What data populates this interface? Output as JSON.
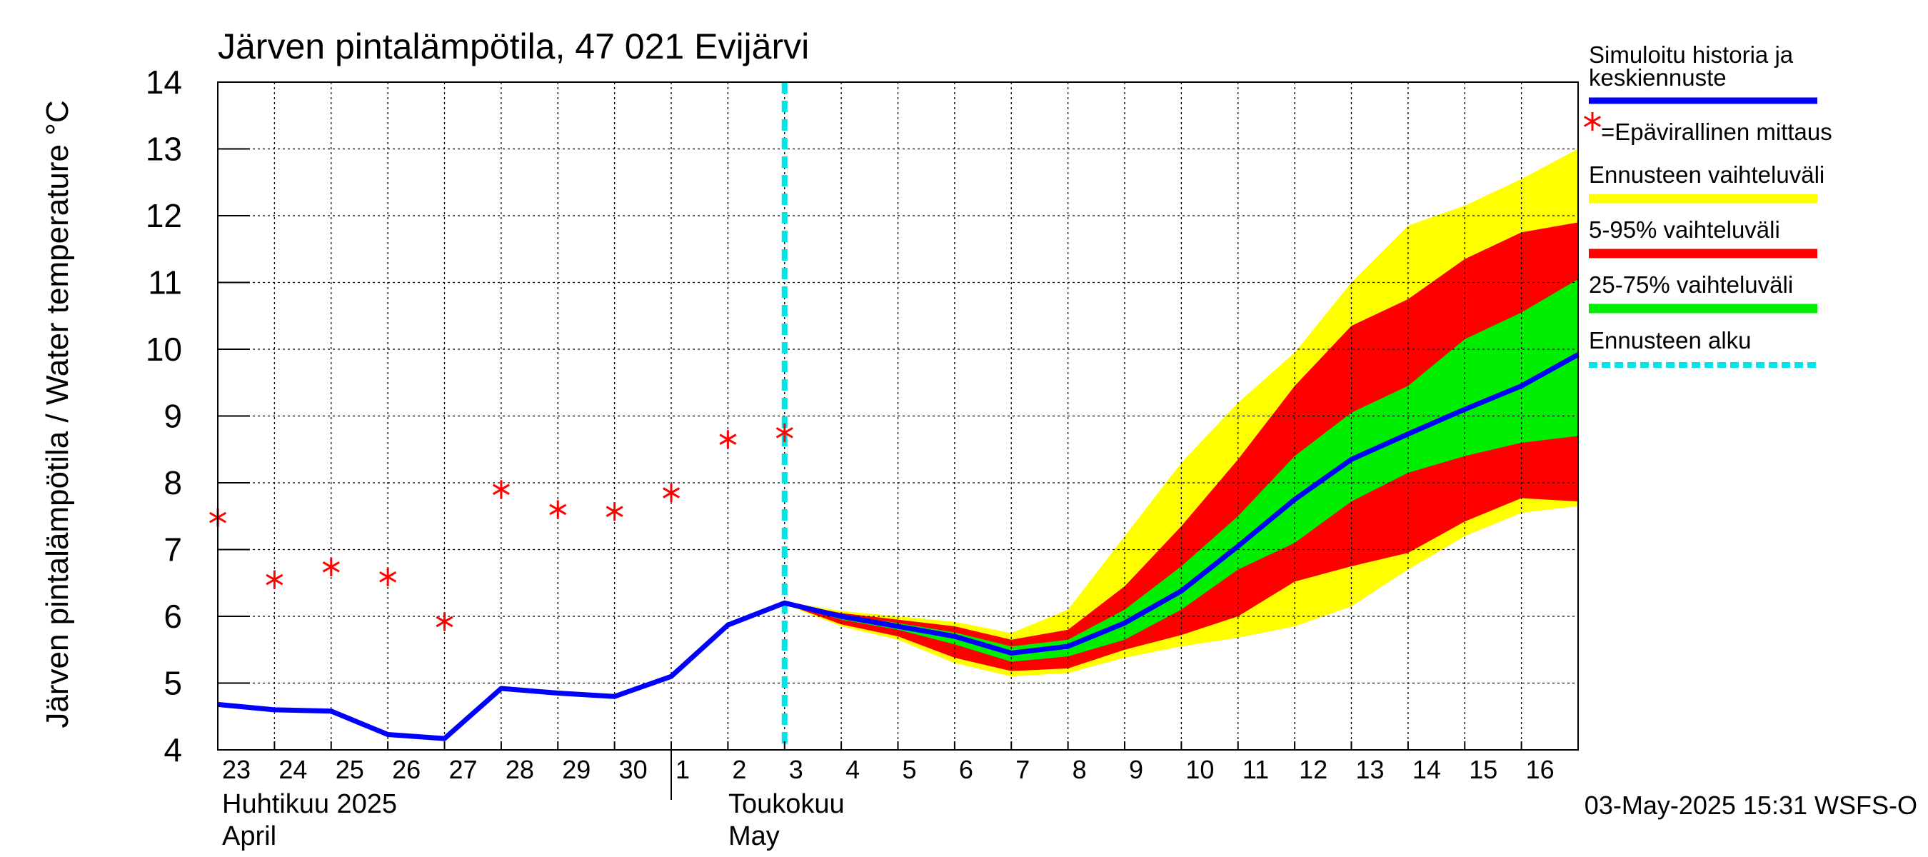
{
  "chart_data": {
    "type": "line",
    "title": "Järven pintalämpötila, 47 021 Evijärvi",
    "ylabel": "Järven pintalämpötila / Water temperature °C",
    "ylim": [
      4,
      14
    ],
    "yticks": [
      4,
      5,
      6,
      7,
      8,
      9,
      10,
      11,
      12,
      13,
      14
    ],
    "x_range": [
      "2025-04-23",
      "2025-05-17"
    ],
    "x_tick_labels": [
      "23",
      "24",
      "25",
      "26",
      "27",
      "28",
      "29",
      "30",
      "1",
      "2",
      "3",
      "4",
      "5",
      "6",
      "7",
      "8",
      "9",
      "10",
      "11",
      "12",
      "13",
      "14",
      "15",
      "16"
    ],
    "month_labels": [
      {
        "fi": "Huhtikuu  2025",
        "en": "April",
        "start": "2025-04-23"
      },
      {
        "fi": "Toukokuu",
        "en": "May",
        "start": "2025-05-01"
      }
    ],
    "grid": true,
    "forecast_start": "2025-05-03",
    "footer": "03-May-2025 15:31 WSFS-O",
    "legend": {
      "position": "right",
      "items": [
        {
          "label_line1": "Simuloitu historia ja",
          "label_line2": "keskiennuste",
          "color": "#0000ff",
          "kind": "line"
        },
        {
          "label": "=Epävirallinen mittaus",
          "color": "#ff0000",
          "kind": "marker"
        },
        {
          "label": "Ennusteen vaihteluväli",
          "color": "#ffff00",
          "kind": "band"
        },
        {
          "label": "5-95% vaihteluväli",
          "color": "#ff0000",
          "kind": "band"
        },
        {
          "label": "25-75% vaihteluväli",
          "color": "#00ee00",
          "kind": "band"
        },
        {
          "label": "Ennusteen alku",
          "color": "#00e5e5",
          "kind": "dashed"
        }
      ]
    },
    "series": [
      {
        "name": "Simuloitu historia ja keskiennuste",
        "color": "#0000ff",
        "x": [
          "2025-04-23",
          "2025-04-24",
          "2025-04-25",
          "2025-04-26",
          "2025-04-27",
          "2025-04-28",
          "2025-04-29",
          "2025-04-30",
          "2025-05-01",
          "2025-05-02",
          "2025-05-03",
          "2025-05-04",
          "2025-05-05",
          "2025-05-06",
          "2025-05-07",
          "2025-05-08",
          "2025-05-09",
          "2025-05-10",
          "2025-05-11",
          "2025-05-12",
          "2025-05-13",
          "2025-05-14",
          "2025-05-15",
          "2025-05-16",
          "2025-05-17"
        ],
        "y": [
          4.68,
          4.6,
          4.58,
          4.23,
          4.17,
          4.92,
          4.85,
          4.8,
          5.1,
          5.87,
          6.2,
          6.0,
          5.85,
          5.7,
          5.45,
          5.55,
          5.9,
          6.38,
          7.05,
          7.75,
          8.35,
          8.73,
          9.1,
          9.45,
          9.92
        ]
      },
      {
        "name": "Epävirallinen mittaus",
        "color": "#ff0000",
        "x": [
          "2025-04-23",
          "2025-04-24",
          "2025-04-25",
          "2025-04-26",
          "2025-04-27",
          "2025-04-28",
          "2025-04-29",
          "2025-04-30",
          "2025-05-01",
          "2025-05-02",
          "2025-05-03"
        ],
        "y": [
          7.48,
          6.55,
          6.74,
          6.59,
          5.92,
          7.9,
          7.6,
          7.57,
          7.85,
          8.65,
          8.75
        ]
      }
    ],
    "bands": [
      {
        "name": "Ennusteen vaihteluväli",
        "color": "#ffff00",
        "x": [
          "2025-05-03",
          "2025-05-04",
          "2025-05-05",
          "2025-05-06",
          "2025-05-07",
          "2025-05-08",
          "2025-05-09",
          "2025-05-10",
          "2025-05-11",
          "2025-05-12",
          "2025-05-13",
          "2025-05-14",
          "2025-05-15",
          "2025-05-16",
          "2025-05-17"
        ],
        "upper": [
          6.22,
          6.08,
          6.0,
          5.92,
          5.75,
          6.1,
          7.2,
          8.3,
          9.2,
          9.95,
          11.0,
          11.85,
          12.15,
          12.55,
          13.0
        ],
        "lower": [
          6.18,
          5.85,
          5.65,
          5.3,
          5.1,
          5.15,
          5.38,
          5.55,
          5.68,
          5.85,
          6.15,
          6.7,
          7.2,
          7.55,
          7.65
        ]
      },
      {
        "name": "5-95% vaihteluväli",
        "color": "#ff0000",
        "x": [
          "2025-05-03",
          "2025-05-04",
          "2025-05-05",
          "2025-05-06",
          "2025-05-07",
          "2025-05-08",
          "2025-05-09",
          "2025-05-10",
          "2025-05-11",
          "2025-05-12",
          "2025-05-13",
          "2025-05-14",
          "2025-05-15",
          "2025-05-16",
          "2025-05-17"
        ],
        "upper": [
          6.21,
          6.05,
          5.95,
          5.85,
          5.65,
          5.8,
          6.45,
          7.35,
          8.35,
          9.45,
          10.35,
          10.75,
          11.35,
          11.75,
          11.9
        ],
        "lower": [
          6.19,
          5.88,
          5.7,
          5.38,
          5.18,
          5.22,
          5.5,
          5.72,
          6.0,
          6.52,
          6.75,
          6.95,
          7.42,
          7.77,
          7.72
        ]
      },
      {
        "name": "25-75% vaihteluväli",
        "color": "#00ee00",
        "x": [
          "2025-05-03",
          "2025-05-04",
          "2025-05-05",
          "2025-05-06",
          "2025-05-07",
          "2025-05-08",
          "2025-05-09",
          "2025-05-10",
          "2025-05-11",
          "2025-05-12",
          "2025-05-13",
          "2025-05-14",
          "2025-05-15",
          "2025-05-16",
          "2025-05-17"
        ],
        "upper": [
          6.2,
          6.02,
          5.9,
          5.76,
          5.55,
          5.65,
          6.1,
          6.75,
          7.5,
          8.4,
          9.05,
          9.45,
          10.15,
          10.55,
          11.05
        ],
        "lower": [
          6.2,
          5.95,
          5.8,
          5.58,
          5.32,
          5.4,
          5.65,
          6.1,
          6.7,
          7.1,
          7.72,
          8.15,
          8.4,
          8.6,
          8.7
        ]
      }
    ]
  }
}
